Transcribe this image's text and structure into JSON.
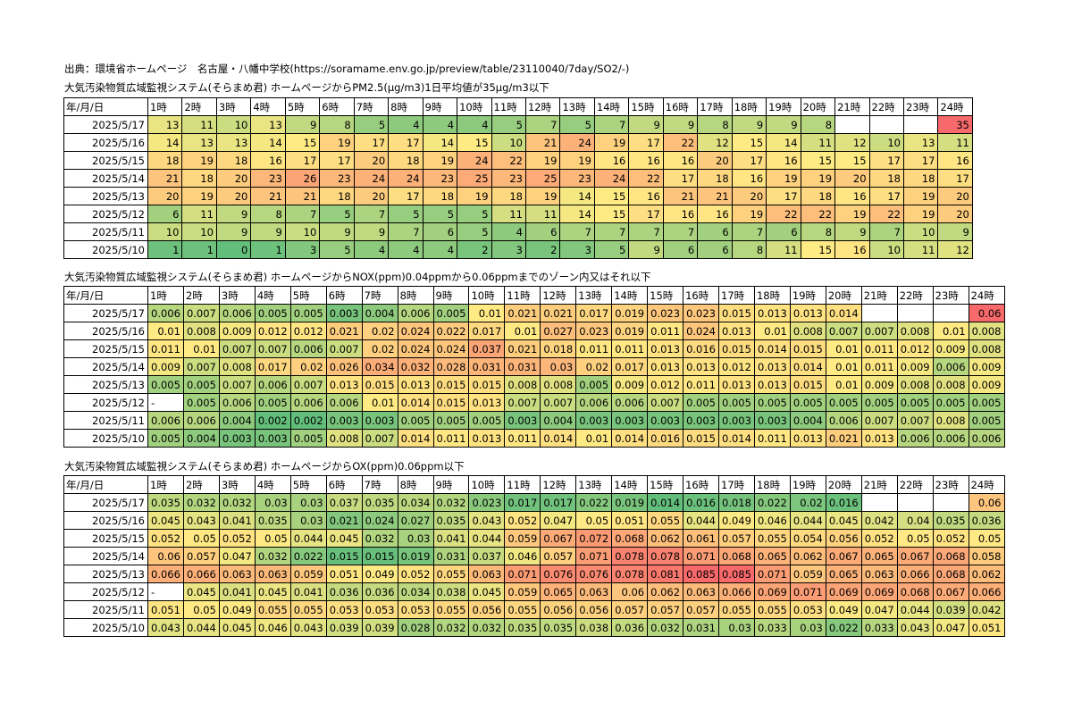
{
  "source_line": "出典：環境省ホームページ　名古屋・八幡中学校(https://soramame.env.go.jp/preview/table/23110040/7day/SO2/-)",
  "sections": [
    {
      "title": "大気汚染物質広域監視システム(そらまめ君) ホームページからPM2.5(μg/m3)1日平均値が35μg/m3以下",
      "header": [
        "年/月/日",
        "1時",
        "2時",
        "3時",
        "4時",
        "5時",
        "6時",
        "7時",
        "8時",
        "9時",
        "10時",
        "11時",
        "12時",
        "13時",
        "14時",
        "15時",
        "16時",
        "17時",
        "18時",
        "19時",
        "20時",
        "21時",
        "22時",
        "23時",
        "24時"
      ],
      "rows": [
        {
          "date": "2025/5/17",
          "values": [
            "13",
            "11",
            "10",
            "13",
            "9",
            "8",
            "5",
            "4",
            "4",
            "4",
            "5",
            "7",
            "5",
            "7",
            "9",
            "9",
            "8",
            "9",
            "9",
            "8",
            "",
            "",
            "",
            "35"
          ]
        },
        {
          "date": "2025/5/16",
          "values": [
            "14",
            "13",
            "13",
            "14",
            "15",
            "19",
            "17",
            "17",
            "14",
            "15",
            "10",
            "21",
            "24",
            "19",
            "17",
            "22",
            "12",
            "15",
            "14",
            "11",
            "12",
            "10",
            "13",
            "11"
          ]
        },
        {
          "date": "2025/5/15",
          "values": [
            "18",
            "19",
            "18",
            "16",
            "17",
            "17",
            "20",
            "18",
            "19",
            "24",
            "22",
            "19",
            "19",
            "16",
            "16",
            "16",
            "20",
            "17",
            "16",
            "15",
            "15",
            "17",
            "17",
            "16"
          ]
        },
        {
          "date": "2025/5/14",
          "values": [
            "21",
            "18",
            "20",
            "23",
            "26",
            "23",
            "24",
            "24",
            "23",
            "25",
            "23",
            "25",
            "23",
            "24",
            "22",
            "17",
            "18",
            "16",
            "19",
            "19",
            "20",
            "18",
            "18",
            "17"
          ]
        },
        {
          "date": "2025/5/13",
          "values": [
            "20",
            "19",
            "20",
            "21",
            "21",
            "18",
            "20",
            "17",
            "18",
            "19",
            "18",
            "19",
            "14",
            "15",
            "16",
            "21",
            "21",
            "20",
            "17",
            "18",
            "16",
            "17",
            "19",
            "20"
          ]
        },
        {
          "date": "2025/5/12",
          "values": [
            "6",
            "11",
            "9",
            "8",
            "7",
            "5",
            "7",
            "5",
            "5",
            "5",
            "11",
            "11",
            "14",
            "15",
            "17",
            "16",
            "16",
            "19",
            "22",
            "22",
            "19",
            "22",
            "19",
            "20"
          ]
        },
        {
          "date": "2025/5/11",
          "values": [
            "10",
            "10",
            "9",
            "9",
            "10",
            "9",
            "9",
            "7",
            "6",
            "5",
            "4",
            "6",
            "7",
            "7",
            "7",
            "7",
            "6",
            "7",
            "6",
            "8",
            "9",
            "7",
            "10",
            "9"
          ]
        },
        {
          "date": "2025/5/10",
          "values": [
            "1",
            "1",
            "0",
            "1",
            "3",
            "5",
            "4",
            "4",
            "4",
            "2",
            "3",
            "2",
            "3",
            "5",
            "9",
            "6",
            "6",
            "8",
            "11",
            "15",
            "16",
            "10",
            "11",
            "12"
          ]
        }
      ]
    },
    {
      "title": "大気汚染物質広域監視システム(そらまめ君) ホームページからNOX(ppm)0.04ppmから0.06ppmまでのゾーン内又はそれ以下",
      "header": [
        "年/月/日",
        "1時",
        "2時",
        "3時",
        "4時",
        "5時",
        "6時",
        "7時",
        "8時",
        "9時",
        "10時",
        "11時",
        "12時",
        "13時",
        "14時",
        "15時",
        "16時",
        "17時",
        "18時",
        "19時",
        "20時",
        "21時",
        "22時",
        "23時",
        "24時"
      ],
      "rows": [
        {
          "date": "2025/5/17",
          "values": [
            "0.006",
            "0.007",
            "0.006",
            "0.005",
            "0.005",
            "0.003",
            "0.004",
            "0.006",
            "0.005",
            "0.01",
            "0.021",
            "0.021",
            "0.017",
            "0.019",
            "0.023",
            "0.023",
            "0.015",
            "0.013",
            "0.013",
            "0.014",
            "",
            "",
            "",
            "0.06"
          ]
        },
        {
          "date": "2025/5/16",
          "values": [
            "0.01",
            "0.008",
            "0.009",
            "0.012",
            "0.012",
            "0.021",
            "0.02",
            "0.024",
            "0.022",
            "0.017",
            "0.01",
            "0.027",
            "0.023",
            "0.019",
            "0.011",
            "0.024",
            "0.013",
            "0.01",
            "0.008",
            "0.007",
            "0.007",
            "0.008",
            "0.01",
            "0.008"
          ]
        },
        {
          "date": "2025/5/15",
          "values": [
            "0.011",
            "0.01",
            "0.007",
            "0.007",
            "0.006",
            "0.007",
            "0.02",
            "0.024",
            "0.024",
            "0.037",
            "0.021",
            "0.018",
            "0.011",
            "0.011",
            "0.013",
            "0.016",
            "0.015",
            "0.014",
            "0.015",
            "0.01",
            "0.011",
            "0.012",
            "0.009",
            "0.008"
          ]
        },
        {
          "date": "2025/5/14",
          "values": [
            "0.009",
            "0.007",
            "0.008",
            "0.017",
            "0.02",
            "0.026",
            "0.034",
            "0.032",
            "0.028",
            "0.031",
            "0.031",
            "0.03",
            "0.02",
            "0.017",
            "0.013",
            "0.013",
            "0.012",
            "0.013",
            "0.014",
            "0.01",
            "0.011",
            "0.009",
            "0.006",
            "0.009"
          ]
        },
        {
          "date": "2025/5/13",
          "values": [
            "0.005",
            "0.005",
            "0.007",
            "0.006",
            "0.007",
            "0.013",
            "0.015",
            "0.013",
            "0.015",
            "0.015",
            "0.008",
            "0.008",
            "0.005",
            "0.009",
            "0.012",
            "0.011",
            "0.013",
            "0.013",
            "0.015",
            "0.01",
            "0.009",
            "0.008",
            "0.008",
            "0.009"
          ]
        },
        {
          "date": "2025/5/12",
          "values": [
            "-",
            "0.005",
            "0.006",
            "0.005",
            "0.006",
            "0.006",
            "0.01",
            "0.014",
            "0.015",
            "0.013",
            "0.007",
            "0.007",
            "0.006",
            "0.006",
            "0.007",
            "0.005",
            "0.005",
            "0.005",
            "0.005",
            "0.005",
            "0.005",
            "0.005",
            "0.005",
            "0.005"
          ]
        },
        {
          "date": "2025/5/11",
          "values": [
            "0.006",
            "0.006",
            "0.004",
            "0.002",
            "0.002",
            "0.003",
            "0.003",
            "0.005",
            "0.005",
            "0.005",
            "0.003",
            "0.004",
            "0.003",
            "0.003",
            "0.003",
            "0.003",
            "0.003",
            "0.003",
            "0.004",
            "0.006",
            "0.007",
            "0.007",
            "0.008",
            "0.005"
          ]
        },
        {
          "date": "2025/5/10",
          "values": [
            "0.005",
            "0.004",
            "0.003",
            "0.003",
            "0.005",
            "0.008",
            "0.007",
            "0.014",
            "0.011",
            "0.013",
            "0.011",
            "0.014",
            "0.01",
            "0.014",
            "0.016",
            "0.015",
            "0.014",
            "0.011",
            "0.013",
            "0.021",
            "0.013",
            "0.006",
            "0.006",
            "0.006"
          ]
        }
      ]
    },
    {
      "title": "大気汚染物質広域監視システム(そらまめ君) ホームページからOX(ppm)0.06ppm以下",
      "header": [
        "年/月/日",
        "1時",
        "2時",
        "3時",
        "4時",
        "5時",
        "6時",
        "7時",
        "8時",
        "9時",
        "10時",
        "11時",
        "12時",
        "13時",
        "14時",
        "15時",
        "16時",
        "17時",
        "18時",
        "19時",
        "20時",
        "21時",
        "22時",
        "23時",
        "24時"
      ],
      "rows": [
        {
          "date": "2025/5/17",
          "values": [
            "0.035",
            "0.032",
            "0.032",
            "0.03",
            "0.03",
            "0.037",
            "0.035",
            "0.034",
            "0.032",
            "0.023",
            "0.017",
            "0.017",
            "0.022",
            "0.019",
            "0.014",
            "0.016",
            "0.018",
            "0.022",
            "0.02",
            "0.016",
            "",
            "",
            "",
            "0.06"
          ]
        },
        {
          "date": "2025/5/16",
          "values": [
            "0.045",
            "0.043",
            "0.041",
            "0.035",
            "0.03",
            "0.021",
            "0.024",
            "0.027",
            "0.035",
            "0.043",
            "0.052",
            "0.047",
            "0.05",
            "0.051",
            "0.055",
            "0.044",
            "0.049",
            "0.046",
            "0.044",
            "0.045",
            "0.042",
            "0.04",
            "0.035",
            "0.036"
          ]
        },
        {
          "date": "2025/5/15",
          "values": [
            "0.052",
            "0.05",
            "0.052",
            "0.05",
            "0.044",
            "0.045",
            "0.032",
            "0.03",
            "0.041",
            "0.044",
            "0.059",
            "0.067",
            "0.072",
            "0.068",
            "0.062",
            "0.061",
            "0.057",
            "0.055",
            "0.054",
            "0.056",
            "0.052",
            "0.05",
            "0.052",
            "0.05"
          ]
        },
        {
          "date": "2025/5/14",
          "values": [
            "0.06",
            "0.057",
            "0.047",
            "0.032",
            "0.022",
            "0.015",
            "0.015",
            "0.019",
            "0.031",
            "0.037",
            "0.046",
            "0.057",
            "0.071",
            "0.078",
            "0.078",
            "0.071",
            "0.068",
            "0.065",
            "0.062",
            "0.067",
            "0.065",
            "0.067",
            "0.068",
            "0.058"
          ]
        },
        {
          "date": "2025/5/13",
          "values": [
            "0.066",
            "0.066",
            "0.063",
            "0.063",
            "0.059",
            "0.051",
            "0.049",
            "0.052",
            "0.055",
            "0.063",
            "0.071",
            "0.076",
            "0.076",
            "0.078",
            "0.081",
            "0.085",
            "0.085",
            "0.071",
            "0.059",
            "0.065",
            "0.063",
            "0.066",
            "0.068",
            "0.062"
          ]
        },
        {
          "date": "2025/5/12",
          "values": [
            "-",
            "0.045",
            "0.041",
            "0.045",
            "0.041",
            "0.036",
            "0.036",
            "0.034",
            "0.038",
            "0.045",
            "0.059",
            "0.065",
            "0.063",
            "0.06",
            "0.062",
            "0.063",
            "0.066",
            "0.069",
            "0.071",
            "0.069",
            "0.069",
            "0.068",
            "0.067",
            "0.066"
          ]
        },
        {
          "date": "2025/5/11",
          "values": [
            "0.051",
            "0.05",
            "0.049",
            "0.055",
            "0.055",
            "0.053",
            "0.053",
            "0.053",
            "0.055",
            "0.056",
            "0.055",
            "0.056",
            "0.056",
            "0.057",
            "0.057",
            "0.057",
            "0.055",
            "0.055",
            "0.053",
            "0.049",
            "0.047",
            "0.044",
            "0.039",
            "0.042"
          ]
        },
        {
          "date": "2025/5/10",
          "values": [
            "0.043",
            "0.044",
            "0.045",
            "0.046",
            "0.043",
            "0.039",
            "0.039",
            "0.028",
            "0.032",
            "0.032",
            "0.035",
            "0.035",
            "0.038",
            "0.036",
            "0.032",
            "0.031",
            "0.03",
            "0.033",
            "0.03",
            "0.022",
            "0.033",
            "0.043",
            "0.047",
            "0.051"
          ]
        }
      ]
    }
  ],
  "colors": {
    "low": "#63BE7B",
    "mid": "#FFEB84",
    "high": "#F8696B",
    "border": "#000000"
  }
}
